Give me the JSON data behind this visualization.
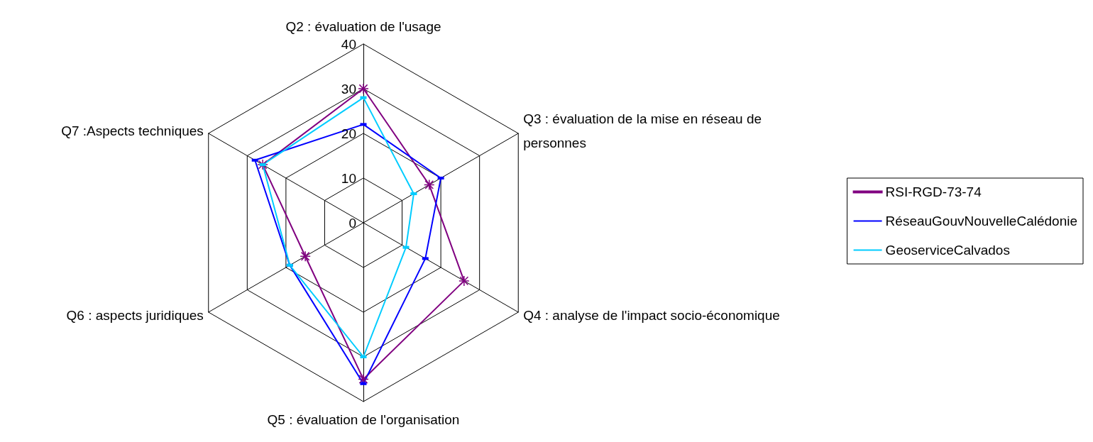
{
  "chart_data": {
    "type": "radar",
    "categories": [
      "Q2 : évaluation de l'usage",
      "Q3 : évaluation de la mise en réseau de\npersonnes",
      "Q4 : analyse de l'impact socio-économique",
      "Q5 : évaluation de l'organisation",
      "Q6 : aspects juridiques",
      "Q7 :Aspects techniques"
    ],
    "ylim": [
      0,
      40
    ],
    "yticks": [
      0,
      10,
      20,
      30,
      40
    ],
    "legend": "right",
    "grid": true,
    "series": [
      {
        "name": "RSI-RGD-73-74",
        "color": "#800080",
        "marker": "cross",
        "values": [
          30,
          17,
          26,
          35,
          15,
          26
        ]
      },
      {
        "name": "RéseauGouvNouvelleCalédonie",
        "color": "#0000ff",
        "marker": "square",
        "values": [
          22,
          20,
          16,
          36,
          19,
          28
        ]
      },
      {
        "name": "GeoserviceCalvados",
        "color": "#00ccff",
        "marker": "square",
        "values": [
          28,
          13,
          11,
          30,
          19,
          26
        ]
      }
    ]
  }
}
